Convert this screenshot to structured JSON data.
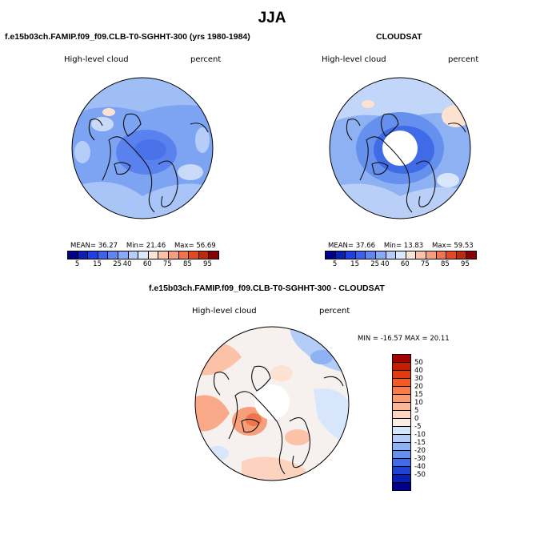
{
  "main_title": "JJA",
  "panels": [
    {
      "title": "f.e15b03ch.FAMIP.f09_f09.CLB-T0-SGHHT-300 (yrs 1980-1984)",
      "variable": "High-level cloud",
      "units": "percent",
      "stats": {
        "mean_label": "MEAN=",
        "mean": "36.27",
        "min_label": "Min=",
        "min": "21.46",
        "max_label": "Max=",
        "max": "56.69"
      }
    },
    {
      "title": "CLOUDSAT",
      "variable": "High-level cloud",
      "units": "percent",
      "stats": {
        "mean_label": "MEAN=",
        "mean": "37.66",
        "min_label": "Min=",
        "min": "13.83",
        "max_label": "Max=",
        "max": "59.53"
      }
    },
    {
      "title": "f.e15b03ch.FAMIP.f09_f09.CLB-T0-SGHHT-300 - CLOUDSAT",
      "variable": "High-level cloud",
      "units": "percent",
      "stats_line": "MIN = -16.57 MAX =  20.11"
    }
  ],
  "abs_colorbar": {
    "ticks": [
      "5",
      "15",
      "25",
      "40",
      "60",
      "75",
      "85",
      "95"
    ],
    "colors": [
      "#00008b",
      "#0a1fb4",
      "#1f40e0",
      "#3a63f0",
      "#5f86f5",
      "#89aaf7",
      "#b7cdf9",
      "#dce8fb",
      "#fde4d8",
      "#fbc2a8",
      "#f79e7a",
      "#f0744c",
      "#e34a24",
      "#c02a0c",
      "#8b0000"
    ]
  },
  "diff_colorbar": {
    "labels": [
      "50",
      "40",
      "30",
      "20",
      "15",
      "10",
      "5",
      "0",
      "-5",
      "-10",
      "-15",
      "-20",
      "-30",
      "-40",
      "-50"
    ],
    "colors": [
      "#a50000",
      "#c81c00",
      "#e43a10",
      "#f55a25",
      "#f97a4a",
      "#fb9a72",
      "#fcb696",
      "#fdd5c0",
      "#fdeee4",
      "#d8e6fb",
      "#b4cdf7",
      "#8eb1f3",
      "#6690ee",
      "#3f6ce6",
      "#1c42d6",
      "#0a1fb4",
      "#00008b"
    ]
  },
  "chart_data": [
    {
      "type": "map",
      "projection": "north polar stereographic",
      "title": "f.e15b03ch.FAMIP.f09_f09.CLB-T0-SGHHT-300 (yrs 1980-1984)",
      "field": "High-level cloud",
      "units": "percent",
      "mean": 36.27,
      "min": 21.46,
      "max": 56.69,
      "levels": [
        5,
        10,
        15,
        20,
        25,
        30,
        40,
        50,
        60,
        65,
        75,
        80,
        85,
        90,
        95
      ]
    },
    {
      "type": "map",
      "projection": "north polar stereographic",
      "title": "CLOUDSAT",
      "field": "High-level cloud",
      "units": "percent",
      "mean": 37.66,
      "min": 13.83,
      "max": 59.53,
      "levels": [
        5,
        10,
        15,
        20,
        25,
        30,
        40,
        50,
        60,
        65,
        75,
        80,
        85,
        90,
        95
      ]
    },
    {
      "type": "map",
      "projection": "north polar stereographic",
      "title": "f.e15b03ch.FAMIP.f09_f09.CLB-T0-SGHHT-300 - CLOUDSAT",
      "field": "High-level cloud",
      "units": "percent",
      "min": -16.57,
      "max": 20.11,
      "levels": [
        -50,
        -40,
        -30,
        -20,
        -15,
        -10,
        -5,
        0,
        5,
        10,
        15,
        20,
        30,
        40,
        50
      ]
    }
  ]
}
